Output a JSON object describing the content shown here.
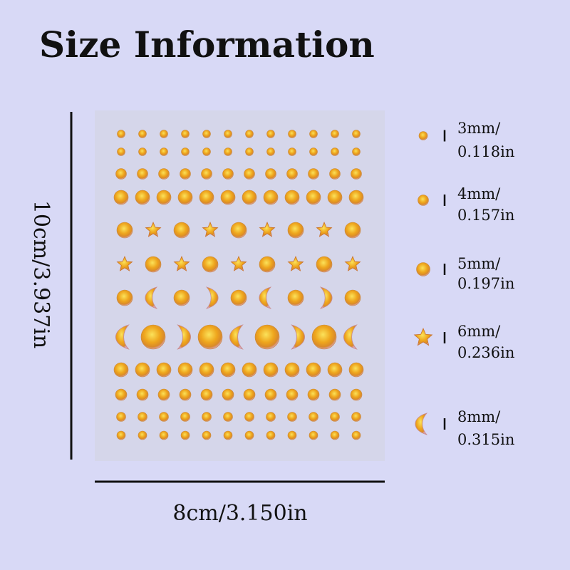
{
  "title": "Size Information",
  "height_label": "10cm/3.937in",
  "width_label": "8cm/3.150in",
  "legend": [
    {
      "mm": "3mm/",
      "inch": "0.118in"
    },
    {
      "mm": "4mm/",
      "inch": "0.157in"
    },
    {
      "mm": "5mm/",
      "inch": "0.197in"
    },
    {
      "mm": "6mm/",
      "inch": "0.236in"
    },
    {
      "mm": "8mm/",
      "inch": "0.315in"
    }
  ]
}
